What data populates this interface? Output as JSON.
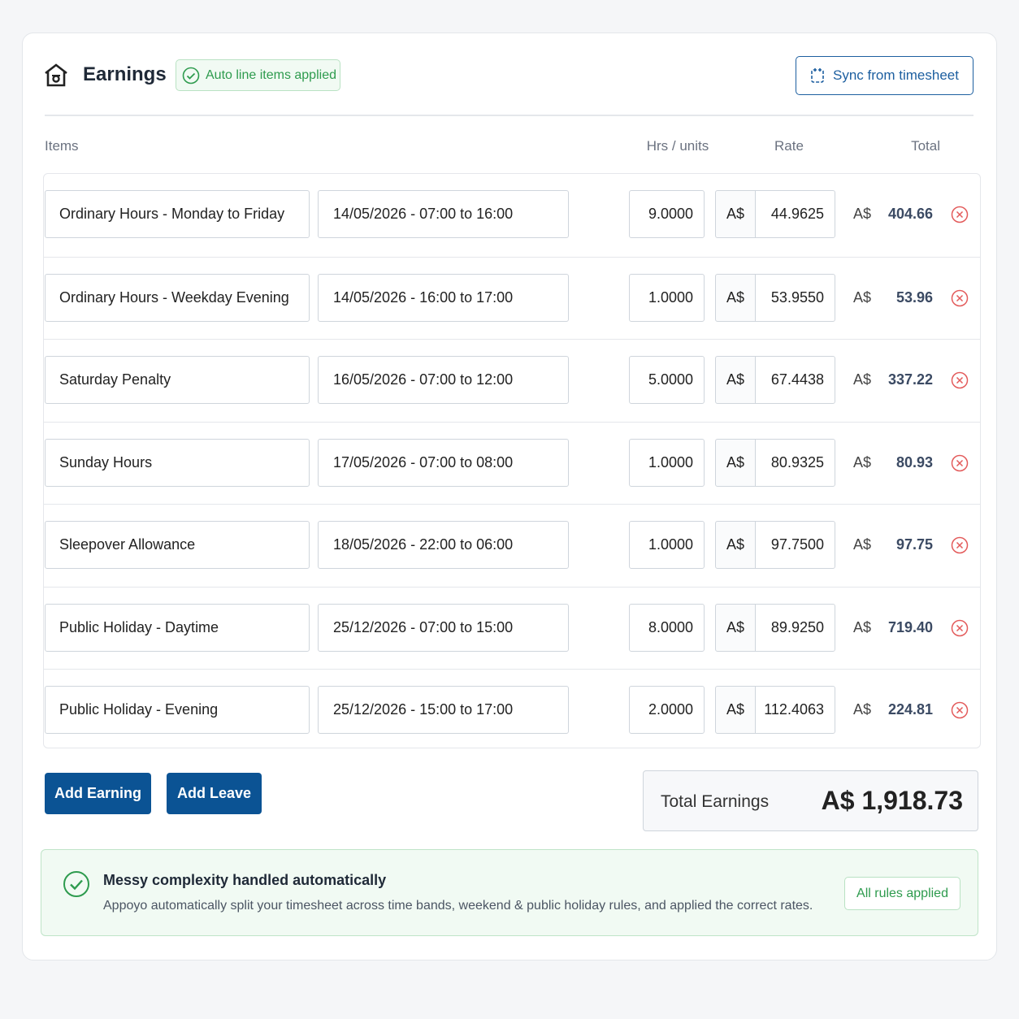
{
  "header": {
    "title": "Earnings",
    "badge": "Auto line items applied",
    "button": "Sync from timesheet"
  },
  "table": {
    "columns": [
      "Items",
      "Hrs / units",
      "Rate",
      "Total"
    ],
    "rows": [
      [
        "Ordinary Hours - Monday to Friday",
        "14/05/2026 - 07:00 to 16:00",
        "9.0000",
        "A$",
        "44.9625",
        "A$",
        "404.66"
      ],
      [
        "Ordinary Hours - Weekday Evening",
        "14/05/2026 - 16:00 to 17:00",
        "1.0000",
        "A$",
        "53.9550",
        "A$",
        "53.96"
      ],
      [
        "Saturday Penalty",
        "16/05/2026 - 07:00 to 12:00",
        "5.0000",
        "A$",
        "67.4438",
        "A$",
        "337.22"
      ],
      [
        "Sunday Hours",
        "17/05/2026 - 07:00 to 08:00",
        "1.0000",
        "A$",
        "80.9325",
        "A$",
        "80.93"
      ],
      [
        "Sleepover Allowance",
        "18/05/2026 - 22:00 to 06:00",
        "1.0000",
        "A$",
        "97.7500",
        "A$",
        "97.75"
      ],
      [
        "Public Holiday - Daytime",
        "25/12/2026 - 07:00 to 15:00",
        "8.0000",
        "A$",
        "89.9250",
        "A$",
        "719.40"
      ],
      [
        "Public Holiday - Evening",
        "25/12/2026 - 15:00 to 17:00",
        "2.0000",
        "A$",
        "112.4063",
        "A$",
        "224.81"
      ]
    ]
  },
  "actions": [
    "Add Earning",
    "Add Leave"
  ],
  "summary": {
    "label": "Total Earnings",
    "value": "A$ 1,918.73"
  },
  "notice": {
    "title": "Messy complexity handled automatically",
    "text": "Appoyo automatically split your timesheet across time bands, weekend & public holiday rules, and applied the correct rates.",
    "badge": "All rules applied"
  }
}
